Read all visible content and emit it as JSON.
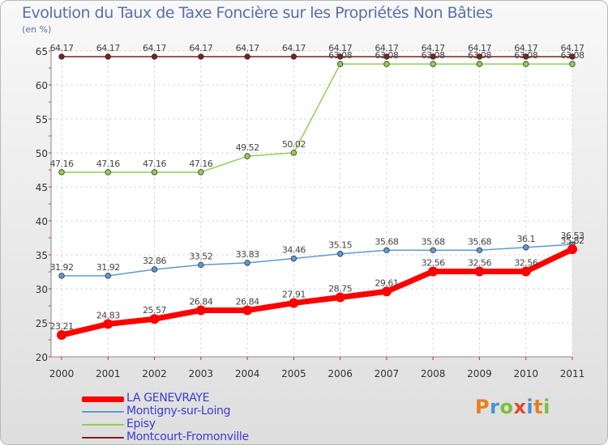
{
  "title": "Evolution du Taux de Taxe Foncière sur les Propriétés Non Bâties",
  "unit": "(en %)",
  "logo": {
    "text": "Proxiti",
    "colors": [
      "#e8801a",
      "#4a90d9",
      "#7bbf3a",
      "#e04a2a",
      "#4a90d9",
      "#e8801a",
      "#7bbf3a"
    ]
  },
  "chart_data": {
    "type": "line",
    "title": "Evolution du Taux de Taxe Foncière sur les Propriétés Non Bâties",
    "ylabel": "(en %)",
    "xlabel": "",
    "x": [
      2000,
      2001,
      2002,
      2003,
      2004,
      2005,
      2006,
      2007,
      2008,
      2009,
      2010,
      2011
    ],
    "ylim": [
      20,
      65
    ],
    "yticks": [
      20,
      25,
      30,
      35,
      40,
      45,
      50,
      55,
      60,
      65
    ],
    "legend_position": "bottom-left",
    "series": [
      {
        "name": "LA GENEVRAYE",
        "color": "#ff0000",
        "width": "thick",
        "values": [
          23.21,
          24.83,
          25.57,
          26.84,
          26.84,
          27.91,
          28.75,
          29.61,
          32.56,
          32.56,
          32.56,
          35.82
        ],
        "labels": [
          "23.21",
          "24.83",
          "25.57",
          "26.84",
          "26.84",
          "27.91",
          "28.75",
          "29.61",
          "32.56",
          "32.56",
          "32.56",
          "35.82"
        ]
      },
      {
        "name": "Montigny-sur-Loing",
        "color": "#5a9bd5",
        "width": "thin",
        "values": [
          31.92,
          31.92,
          32.86,
          33.52,
          33.83,
          34.46,
          35.15,
          35.68,
          35.68,
          35.68,
          36.1,
          36.53
        ],
        "labels": [
          "31.92",
          "31.92",
          "32.86",
          "33.52",
          "33.83",
          "34.46",
          "35.15",
          "35.68",
          "35.68",
          "35.68",
          "36.1",
          "36.53"
        ]
      },
      {
        "name": "Episy",
        "color": "#8fd14f",
        "width": "thin",
        "values": [
          47.16,
          47.16,
          47.16,
          47.16,
          49.52,
          50.02,
          63.08,
          63.08,
          63.08,
          63.08,
          63.08,
          63.08
        ],
        "labels": [
          "47.16",
          "47.16",
          "47.16",
          "47.16",
          "49.52",
          "50.02",
          "63.08",
          "63.08",
          "63.08",
          "63.08",
          "63.08",
          "63.08"
        ]
      },
      {
        "name": "Montcourt-Fromonville",
        "color": "#7a1f1f",
        "width": "thin",
        "values": [
          64.17,
          64.17,
          64.17,
          64.17,
          64.17,
          64.17,
          64.17,
          64.17,
          64.17,
          64.17,
          64.17,
          64.17
        ],
        "labels": [
          "64.17",
          "64.17",
          "64.17",
          "64.17",
          "64.17",
          "64.17",
          "64.17",
          "64.17",
          "64.17",
          "64.17",
          "64.17",
          "64.17"
        ]
      }
    ]
  }
}
